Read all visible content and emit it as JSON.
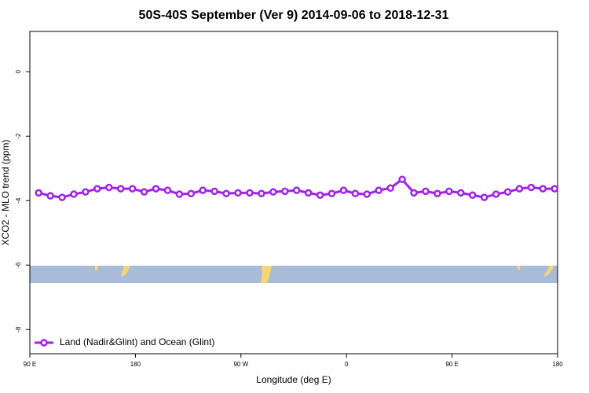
{
  "chart_data": {
    "type": "line",
    "title": "50S-40S September (Ver 9)   2014-09-06 to 2018-12-31",
    "xlabel": "Longitude (deg E)",
    "ylabel": "XCO2 - MLO trend (ppm)",
    "xlim": [
      90,
      540
    ],
    "ylim": [
      -8.75,
      1.25
    ],
    "xticks": [
      {
        "value": 90,
        "label": "90 E"
      },
      {
        "value": 180,
        "label": "180"
      },
      {
        "value": 270,
        "label": "90 W"
      },
      {
        "value": 360,
        "label": "0"
      },
      {
        "value": 450,
        "label": "90 E"
      },
      {
        "value": 540,
        "label": "180"
      }
    ],
    "yticks": [
      0,
      -2,
      -4,
      -6,
      -8
    ],
    "legend": "bottom-left",
    "x": [
      97.5,
      107.5,
      117.5,
      127.5,
      137.5,
      147.5,
      157.5,
      167.5,
      177.5,
      187.5,
      197.5,
      207.5,
      217.5,
      227.5,
      237.5,
      247.5,
      257.5,
      267.5,
      277.5,
      287.5,
      297.5,
      307.5,
      317.5,
      327.5,
      337.5,
      347.5,
      357.5,
      367.5,
      377.5,
      387.5,
      397.5,
      407.5,
      417.5,
      427.5,
      437.5,
      447.5,
      457.5,
      467.5,
      477.5,
      487.5,
      497.5,
      507.5,
      517.5,
      527.5,
      537.5
    ],
    "series": [
      {
        "name": "Land (Nadir&Glint) and Ocean (Glint)",
        "color": "#a020f0",
        "values": [
          -3.76,
          -3.85,
          -3.9,
          -3.8,
          -3.73,
          -3.63,
          -3.59,
          -3.63,
          -3.63,
          -3.73,
          -3.63,
          -3.68,
          -3.8,
          -3.78,
          -3.68,
          -3.71,
          -3.78,
          -3.76,
          -3.76,
          -3.78,
          -3.73,
          -3.71,
          -3.68,
          -3.76,
          -3.83,
          -3.78,
          -3.68,
          -3.78,
          -3.8,
          -3.68,
          -3.61,
          -3.34,
          -3.76,
          -3.71,
          -3.78,
          -3.71,
          -3.76,
          -3.83,
          -3.9,
          -3.8,
          -3.73,
          -3.63,
          -3.59,
          -3.63,
          -3.63
        ]
      }
    ]
  }
}
